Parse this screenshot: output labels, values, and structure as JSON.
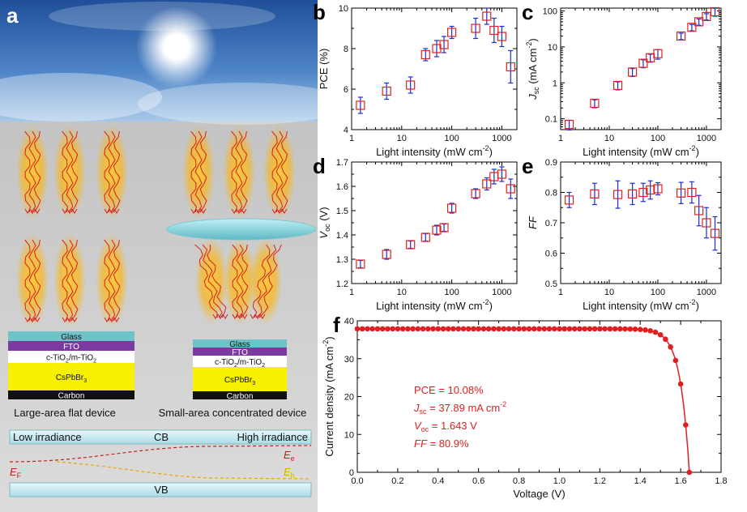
{
  "panel_a": {
    "letter": "a",
    "flat_label": "Large-area flat device",
    "conc_label": "Small-area concentrated device",
    "stack_flat": [
      "Glass",
      "FTO",
      "c-TiO2/m-TiO2",
      "CsPbBr3",
      "Carbon"
    ],
    "stack_conc": [
      "Glass",
      "FTO",
      "c-TiO2/m-TiO2",
      "CsPbBr3",
      "Carbon"
    ],
    "band": {
      "low": "Low irradiance",
      "cb": "CB",
      "high": "High irradiance",
      "vb": "VB",
      "ef": "E",
      "ef_sub": "F",
      "ee": "E",
      "ee_sub": "e",
      "eh": "E",
      "eh_sub": "h"
    },
    "colors": {
      "glass": "#6dc3c8",
      "fto": "#7a3aa0",
      "tio2": "#ffffff",
      "cspbbr3": "#f7f000",
      "carbon": "#111111"
    }
  },
  "chart_data": [
    {
      "id": "b",
      "letter": "b",
      "type": "scatter",
      "xlabel": "Light intensity (mW cm",
      "xlabel_sup": "-2",
      "xlabel_end": ")",
      "ylabel": "PCE (%)",
      "xscale": "log",
      "xlim": [
        1,
        2000
      ],
      "ylim": [
        4,
        10
      ],
      "yticks": [
        4,
        6,
        8,
        10
      ],
      "x": [
        1.5,
        5,
        15,
        30,
        50,
        70,
        100,
        300,
        500,
        700,
        1000,
        1500
      ],
      "y": [
        5.2,
        5.9,
        6.2,
        7.7,
        8.0,
        8.2,
        8.8,
        9.0,
        9.6,
        8.9,
        8.6,
        7.1
      ],
      "err": [
        0.4,
        0.4,
        0.4,
        0.3,
        0.4,
        0.4,
        0.3,
        0.5,
        0.4,
        0.6,
        0.5,
        0.8
      ]
    },
    {
      "id": "c",
      "letter": "c",
      "type": "scatter",
      "xlabel": "Light intensity (mW cm",
      "xlabel_sup": "-2",
      "xlabel_end": ")",
      "ylabel": "J",
      "ylabel_sub": "sc",
      "ylabel_end": " (mA cm",
      "ylabel_sup": "-2",
      "ylabel_close": ")",
      "xscale": "log",
      "yscale": "log",
      "xlim": [
        1,
        2000
      ],
      "ylim": [
        0.05,
        120
      ],
      "yticks": [
        0.1,
        1,
        10,
        100
      ],
      "ytick_labels": [
        "0.1",
        "1",
        "10",
        "100"
      ],
      "x": [
        1.5,
        5,
        15,
        30,
        50,
        70,
        100,
        300,
        500,
        700,
        1000,
        1500
      ],
      "y": [
        0.07,
        0.27,
        0.85,
        2.0,
        3.5,
        5.0,
        6.5,
        20,
        35,
        50,
        70,
        95
      ],
      "err_frac": [
        0.3,
        0.25,
        0.25,
        0.25,
        0.25,
        0.25,
        0.3,
        0.2,
        0.2,
        0.2,
        0.2,
        0.25
      ]
    },
    {
      "id": "d",
      "letter": "d",
      "type": "scatter",
      "xlabel": "Light intensity (mW cm",
      "xlabel_sup": "-2",
      "xlabel_end": ")",
      "ylabel": "V",
      "ylabel_sub": "oc",
      "ylabel_end": " (V)",
      "xscale": "log",
      "xlim": [
        1,
        2000
      ],
      "ylim": [
        1.2,
        1.7
      ],
      "yticks": [
        1.2,
        1.3,
        1.4,
        1.5,
        1.6,
        1.7
      ],
      "x": [
        1.5,
        5,
        15,
        30,
        50,
        70,
        100,
        300,
        500,
        700,
        1000,
        1500
      ],
      "y": [
        1.28,
        1.32,
        1.36,
        1.39,
        1.42,
        1.43,
        1.51,
        1.57,
        1.61,
        1.64,
        1.65,
        1.59
      ],
      "err": [
        0.015,
        0.02,
        0.015,
        0.015,
        0.02,
        0.015,
        0.02,
        0.02,
        0.025,
        0.03,
        0.03,
        0.04
      ]
    },
    {
      "id": "e",
      "letter": "e",
      "type": "scatter",
      "xlabel": "Light intensity (mW cm",
      "xlabel_sup": "-2",
      "xlabel_end": ")",
      "ylabel": "FF",
      "xscale": "log",
      "xlim": [
        1,
        2000
      ],
      "ylim": [
        0.5,
        0.9
      ],
      "yticks": [
        0.5,
        0.6,
        0.7,
        0.8,
        0.9
      ],
      "x": [
        1.5,
        5,
        15,
        30,
        50,
        70,
        100,
        300,
        500,
        700,
        1000,
        1500
      ],
      "y": [
        0.775,
        0.795,
        0.793,
        0.795,
        0.8,
        0.808,
        0.812,
        0.798,
        0.8,
        0.74,
        0.7,
        0.665
      ],
      "err": [
        0.025,
        0.035,
        0.045,
        0.035,
        0.03,
        0.03,
        0.02,
        0.035,
        0.035,
        0.05,
        0.05,
        0.055
      ]
    },
    {
      "id": "f",
      "letter": "f",
      "type": "line",
      "xlabel": "Voltage (V)",
      "ylabel": "Current density (mA cm",
      "ylabel_sup": "-2",
      "ylabel_end": ")",
      "xlim": [
        0,
        1.8
      ],
      "ylim": [
        0,
        40
      ],
      "xticks": [
        0,
        0.2,
        0.4,
        0.6,
        0.8,
        1.0,
        1.2,
        1.4,
        1.6,
        1.8
      ],
      "yticks": [
        0,
        10,
        20,
        30,
        40
      ],
      "jsc": 37.89,
      "voc": 1.643,
      "annotations": {
        "pce": "PCE = 10.08%",
        "jsc_a": "J",
        "jsc_b": "sc",
        "jsc_c": " = 37.89 mA cm",
        "jsc_d": "-2",
        "voc_a": "V",
        "voc_b": "oc",
        "voc_c": " = 1.643 V",
        "ff_a": "FF",
        "ff_c": " = 80.9%"
      },
      "color": "#e02020"
    }
  ]
}
